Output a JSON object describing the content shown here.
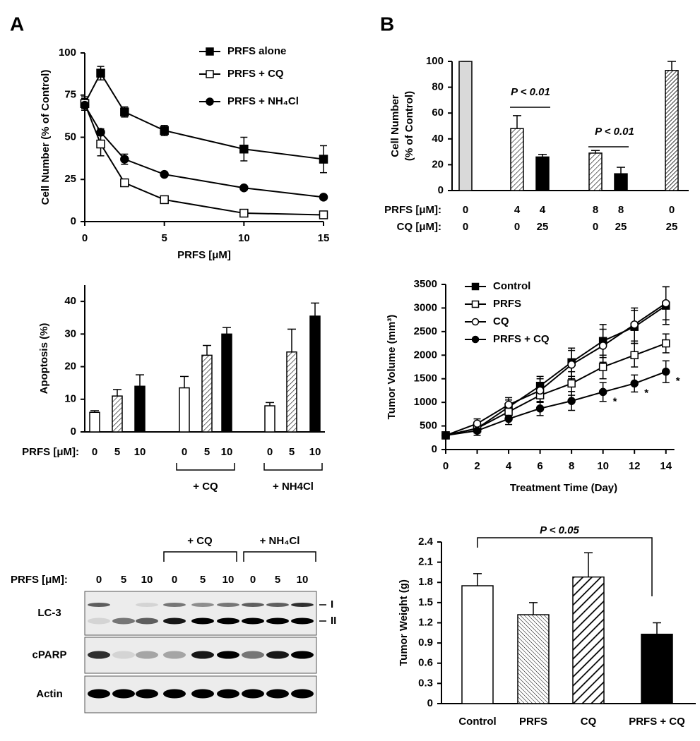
{
  "panels": [
    "A",
    "B"
  ],
  "chart_data": [
    {
      "type": "line",
      "ylabel": "Cell Number (% of Control)",
      "xlabel": "PRFS [μM]",
      "x": [
        0,
        1,
        2.5,
        5,
        10,
        15
      ],
      "xlim": [
        0,
        15
      ],
      "xticks": [
        0,
        5,
        10,
        15
      ],
      "ylim": [
        0,
        100
      ],
      "yticks": [
        0,
        25,
        50,
        75,
        100
      ],
      "series": [
        {
          "name": "PRFS alone",
          "marker": "square",
          "color": "#000000",
          "values": [
            70,
            88,
            65,
            54,
            43,
            37
          ],
          "errors": [
            3,
            4,
            3,
            3,
            7,
            8
          ]
        },
        {
          "name": "PRFS + CQ",
          "marker": "square",
          "color": "#ffffff",
          "values": [
            70,
            46,
            23,
            13,
            5,
            4
          ],
          "errors": [
            4,
            7,
            2,
            1,
            1,
            1
          ]
        },
        {
          "name": "PRFS + NH₄Cl",
          "marker": "circle",
          "color": "#000000",
          "values": [
            69,
            53,
            37,
            28,
            20,
            14.5
          ],
          "errors": [
            3,
            2,
            3,
            1,
            1,
            1
          ]
        }
      ]
    },
    {
      "type": "bar",
      "ylabel": [
        "Cell Number",
        "(% of Control)"
      ],
      "ylim": [
        0,
        100
      ],
      "yticks": [
        0,
        20,
        40,
        60,
        80,
        100
      ],
      "values": [
        100,
        48,
        26,
        29,
        13,
        93
      ],
      "errors": [
        0,
        10,
        2,
        2,
        5,
        7
      ],
      "bar_styles": [
        "gray",
        "hatch",
        "black",
        "hatch",
        "black",
        "dense-hatch"
      ],
      "rows": [
        {
          "label": "PRFS [μM]:",
          "values": [
            "0",
            "4",
            "4",
            "8",
            "8",
            "0"
          ]
        },
        {
          "label": "CQ [μM]:",
          "values": [
            "0",
            "0",
            "25",
            "0",
            "25",
            "25"
          ]
        }
      ],
      "annotations": [
        "P < 0.01",
        "P < 0.01"
      ]
    },
    {
      "type": "bar",
      "ylabel": "Apoptosis (%)",
      "ylim": [
        0,
        45
      ],
      "yticks": [
        0,
        10,
        20,
        30,
        40
      ],
      "values": [
        6,
        11,
        14,
        13.5,
        23.5,
        30,
        8,
        24.5,
        35.5
      ],
      "errors": [
        0.5,
        2,
        3.5,
        3.5,
        3,
        2,
        1,
        7,
        4
      ],
      "bar_styles": [
        "white",
        "hatch",
        "black",
        "white",
        "hatch",
        "black",
        "white",
        "hatch",
        "black"
      ],
      "rows": [
        {
          "label": "PRFS [μM]:",
          "values": [
            "0",
            "5",
            "10",
            "0",
            "5",
            "10",
            "0",
            "5",
            "10"
          ]
        }
      ],
      "groups": [
        "+ CQ",
        "+ NH4Cl"
      ]
    },
    {
      "type": "line",
      "ylabel": "Tumor Volume (mm³)",
      "xlabel": "Treatment Time (Day)",
      "x": [
        0,
        2,
        4,
        6,
        8,
        10,
        12,
        14
      ],
      "xlim": [
        0,
        15
      ],
      "xticks": [
        0,
        2,
        4,
        6,
        8,
        10,
        12,
        14
      ],
      "ylim": [
        0,
        3500
      ],
      "yticks": [
        0,
        500,
        1000,
        1500,
        2000,
        2500,
        3000,
        3500
      ],
      "series": [
        {
          "name": "Control",
          "marker": "square",
          "color": "#000000",
          "values": [
            300,
            450,
            900,
            1350,
            1850,
            2300,
            2600,
            3050
          ],
          "errors": [
            50,
            100,
            150,
            200,
            300,
            350,
            350,
            400
          ]
        },
        {
          "name": "PRFS",
          "marker": "square",
          "color": "#ffffff",
          "values": [
            300,
            450,
            800,
            1150,
            1400,
            1750,
            2000,
            2250
          ],
          "errors": [
            50,
            80,
            100,
            150,
            250,
            250,
            250,
            200
          ]
        },
        {
          "name": "CQ",
          "marker": "circle",
          "color": "#ffffff",
          "values": [
            300,
            550,
            950,
            1250,
            1800,
            2200,
            2650,
            3100
          ],
          "errors": [
            60,
            100,
            150,
            250,
            300,
            350,
            350,
            350
          ]
        },
        {
          "name": "PRFS + CQ",
          "marker": "circle",
          "color": "#000000",
          "values": [
            300,
            400,
            650,
            870,
            1030,
            1220,
            1400,
            1650
          ],
          "errors": [
            50,
            100,
            120,
            150,
            200,
            200,
            180,
            230
          ],
          "significance": [
            null,
            null,
            null,
            null,
            null,
            "*",
            "*",
            "*"
          ]
        }
      ]
    },
    {
      "type": "bar",
      "ylabel": "Tumor Weight (g)",
      "categories": [
        "Control",
        "PRFS",
        "CQ",
        "PRFS + CQ"
      ],
      "values": [
        1.75,
        1.32,
        1.88,
        1.03
      ],
      "errors": [
        0.18,
        0.18,
        0.36,
        0.17
      ],
      "bar_styles": [
        "white",
        "fine-hatch",
        "wide-hatch",
        "black"
      ],
      "ylim": [
        0,
        2.4
      ],
      "yticks": [
        0,
        0.3,
        0.6,
        0.9,
        1.2,
        1.5,
        1.8,
        2.1,
        2.4
      ],
      "annotations": [
        "P < 0.05"
      ]
    }
  ],
  "blot": {
    "groups": [
      "+ CQ",
      "+ NH₄Cl"
    ],
    "row_label": "PRFS [μM]:",
    "lanes": [
      "0",
      "5",
      "10",
      "0",
      "5",
      "10",
      "0",
      "5",
      "10"
    ],
    "bands": [
      "LC-3",
      "cPARP",
      "Actin"
    ],
    "band_markers": [
      "I",
      "II"
    ]
  }
}
